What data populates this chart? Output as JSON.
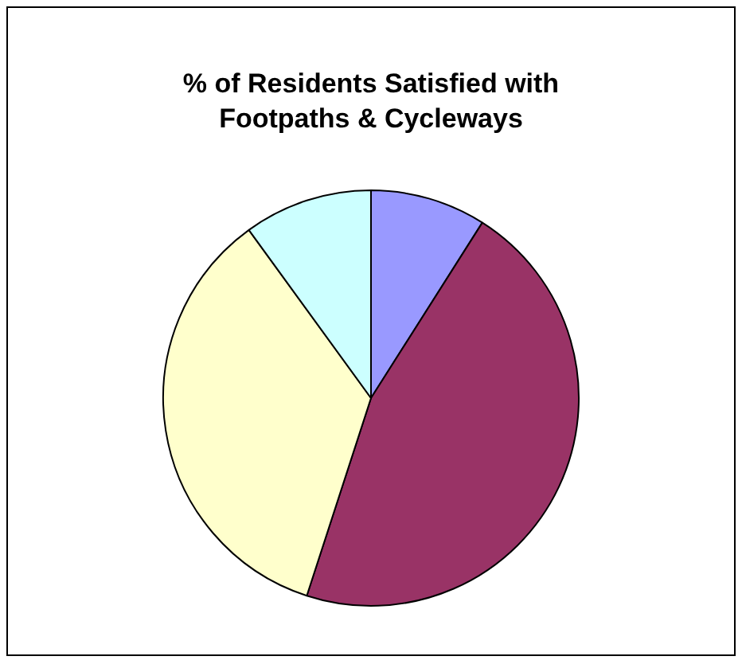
{
  "chart_data": {
    "type": "pie",
    "title": "% of Residents Satisfied with Footpaths & Cycleways",
    "categories": [
      null,
      null,
      null,
      null
    ],
    "values": [
      9,
      46,
      35,
      10
    ],
    "colors": [
      "#9999ff",
      "#993366",
      "#ffffcc",
      "#ccffff"
    ],
    "legend": false
  }
}
